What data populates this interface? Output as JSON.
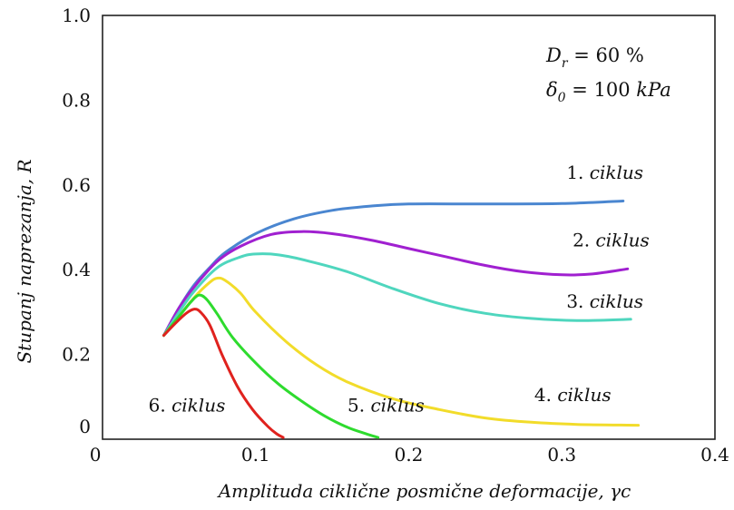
{
  "chart_data": {
    "type": "line",
    "xlabel": "Amplituda ciklične posmične deformacije,  γc",
    "ylabel": "Stupanj naprezanja,  R",
    "xlim": [
      0,
      0.4
    ],
    "ylim": [
      0,
      1.0
    ],
    "x_ticks": [
      "0",
      "0.1",
      "0.2",
      "0.3",
      "0.4"
    ],
    "y_ticks": [
      "0",
      "0.2",
      "0.4",
      "0.6",
      "0.8",
      "1.0"
    ],
    "grid": false,
    "annotations": {
      "dr_symbol": "D",
      "dr_sub": "r",
      "dr_value": " =  60 %",
      "delta_symbol": "δ",
      "delta_sub": "0",
      "delta_value": " =  100 ",
      "delta_unit": "kPa"
    },
    "series": [
      {
        "name": "1. ciklus",
        "num": "1. ",
        "word": "ciklus",
        "color": "#4A86D0",
        "points": [
          [
            0.04,
            0.245
          ],
          [
            0.05,
            0.31
          ],
          [
            0.06,
            0.365
          ],
          [
            0.07,
            0.405
          ],
          [
            0.08,
            0.44
          ],
          [
            0.1,
            0.485
          ],
          [
            0.125,
            0.52
          ],
          [
            0.15,
            0.54
          ],
          [
            0.175,
            0.55
          ],
          [
            0.2,
            0.555
          ],
          [
            0.25,
            0.555
          ],
          [
            0.3,
            0.556
          ],
          [
            0.34,
            0.562
          ]
        ]
      },
      {
        "name": "2. ciklus",
        "num": "2. ",
        "word": "ciklus",
        "color": "#A020D0",
        "points": [
          [
            0.04,
            0.245
          ],
          [
            0.05,
            0.31
          ],
          [
            0.06,
            0.36
          ],
          [
            0.075,
            0.42
          ],
          [
            0.09,
            0.455
          ],
          [
            0.11,
            0.483
          ],
          [
            0.13,
            0.49
          ],
          [
            0.15,
            0.485
          ],
          [
            0.175,
            0.47
          ],
          [
            0.2,
            0.45
          ],
          [
            0.225,
            0.43
          ],
          [
            0.25,
            0.41
          ],
          [
            0.275,
            0.395
          ],
          [
            0.3,
            0.388
          ],
          [
            0.32,
            0.39
          ],
          [
            0.343,
            0.402
          ]
        ]
      },
      {
        "name": "3. ciklus",
        "num": "3. ",
        "word": "ciklus",
        "color": "#4FD6BE",
        "points": [
          [
            0.04,
            0.245
          ],
          [
            0.05,
            0.3
          ],
          [
            0.06,
            0.35
          ],
          [
            0.075,
            0.405
          ],
          [
            0.09,
            0.43
          ],
          [
            0.1,
            0.437
          ],
          [
            0.115,
            0.435
          ],
          [
            0.135,
            0.42
          ],
          [
            0.16,
            0.395
          ],
          [
            0.19,
            0.355
          ],
          [
            0.22,
            0.32
          ],
          [
            0.25,
            0.297
          ],
          [
            0.28,
            0.285
          ],
          [
            0.31,
            0.28
          ],
          [
            0.345,
            0.283
          ]
        ]
      },
      {
        "name": "4. ciklus",
        "num": "4. ",
        "word": "ciklus",
        "color": "#F2DC2A",
        "points": [
          [
            0.04,
            0.245
          ],
          [
            0.05,
            0.29
          ],
          [
            0.06,
            0.335
          ],
          [
            0.07,
            0.37
          ],
          [
            0.075,
            0.38
          ],
          [
            0.08,
            0.375
          ],
          [
            0.09,
            0.345
          ],
          [
            0.1,
            0.3
          ],
          [
            0.12,
            0.23
          ],
          [
            0.14,
            0.175
          ],
          [
            0.16,
            0.135
          ],
          [
            0.19,
            0.095
          ],
          [
            0.22,
            0.07
          ],
          [
            0.25,
            0.05
          ],
          [
            0.28,
            0.04
          ],
          [
            0.31,
            0.035
          ],
          [
            0.35,
            0.033
          ]
        ]
      },
      {
        "name": "5. ciklus",
        "num": "5. ",
        "word": "ciklus",
        "color": "#2EDB2E",
        "points": [
          [
            0.04,
            0.245
          ],
          [
            0.05,
            0.29
          ],
          [
            0.058,
            0.325
          ],
          [
            0.063,
            0.34
          ],
          [
            0.068,
            0.33
          ],
          [
            0.075,
            0.295
          ],
          [
            0.085,
            0.24
          ],
          [
            0.1,
            0.18
          ],
          [
            0.115,
            0.13
          ],
          [
            0.13,
            0.09
          ],
          [
            0.145,
            0.055
          ],
          [
            0.16,
            0.028
          ],
          [
            0.172,
            0.013
          ],
          [
            0.18,
            0.004
          ]
        ]
      },
      {
        "name": "6. ciklus",
        "num": "6. ",
        "word": "ciklus",
        "color": "#E0221E",
        "points": [
          [
            0.04,
            0.245
          ],
          [
            0.048,
            0.275
          ],
          [
            0.055,
            0.298
          ],
          [
            0.06,
            0.307
          ],
          [
            0.064,
            0.3
          ],
          [
            0.07,
            0.27
          ],
          [
            0.078,
            0.2
          ],
          [
            0.088,
            0.125
          ],
          [
            0.098,
            0.07
          ],
          [
            0.108,
            0.03
          ],
          [
            0.114,
            0.012
          ],
          [
            0.118,
            0.004
          ]
        ]
      }
    ]
  }
}
